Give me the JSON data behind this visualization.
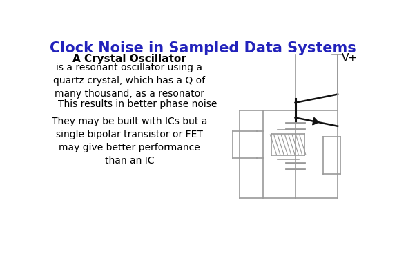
{
  "title": "Clock Noise in Sampled Data Systems",
  "title_color": "#2222bb",
  "title_fontsize": 15,
  "bg_color": "#ffffff",
  "circuit_color": "#999999",
  "transistor_color": "#111111",
  "text_color": "#000000",
  "bold_text": "A Crystal Oscillator",
  "para1": "is a resonant oscillator using a\nquartz crystal, which has a Q of\nmany thousand, as a resonator",
  "para2": "This results in better phase noise",
  "para3": "They may be built with ICs but a\nsingle bipolar transistor or FET\nmay give better performance\nthan an IC",
  "font_size_body": 10,
  "font_size_bold": 11
}
